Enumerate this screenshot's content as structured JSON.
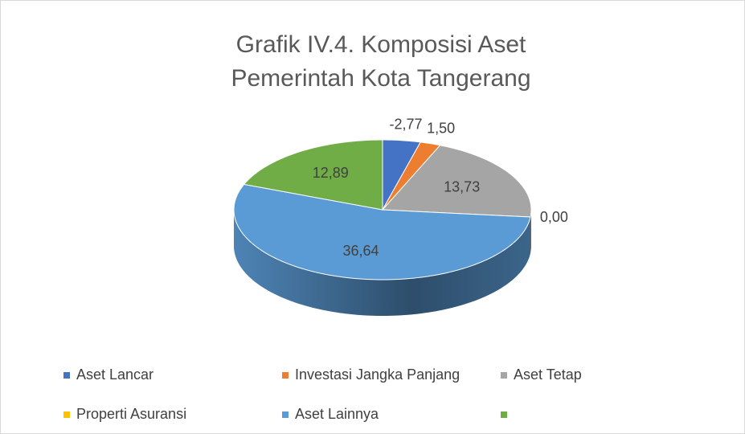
{
  "chart_data": {
    "type": "pie3d",
    "title": "Grafik IV.4. Komposisi Aset Pemerintah Kota Tangerang",
    "categories": [
      "Aset Lancar",
      "Investasi Jangka Panjang",
      "Aset Tetap",
      "Properti Asuransi",
      "Aset Lainnya",
      null
    ],
    "values": [
      -2.77,
      1.5,
      13.73,
      0.0,
      36.64,
      12.89
    ],
    "value_labels": [
      "-2,77",
      "1,50",
      "13,73",
      "0,00",
      "36,64",
      "12,89"
    ],
    "colors": [
      "#4472c4",
      "#ed7d31",
      "#a5a5a5",
      "#ffc000",
      "#5b9bd5",
      "#70ad47"
    ],
    "legend": "bottom"
  }
}
